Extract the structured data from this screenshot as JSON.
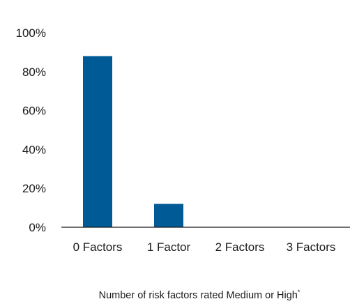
{
  "chart_data": {
    "type": "bar",
    "categories": [
      "0 Factors",
      "1 Factor",
      "2 Factors",
      "3 Factors"
    ],
    "values": [
      88,
      12,
      0,
      0
    ],
    "title": "",
    "xlabel": "Number of risk factors rated Medium or High",
    "xlabel_marker": "*",
    "ylabel": "",
    "ylim": [
      0,
      100
    ],
    "yticks": [
      0,
      20,
      40,
      60,
      80,
      100
    ],
    "ytick_labels": [
      "0%",
      "20%",
      "40%",
      "60%",
      "80%",
      "100%"
    ],
    "bar_color": "#005a96",
    "axis_color": "#1a1a1a",
    "grid": false,
    "legend": "none"
  }
}
